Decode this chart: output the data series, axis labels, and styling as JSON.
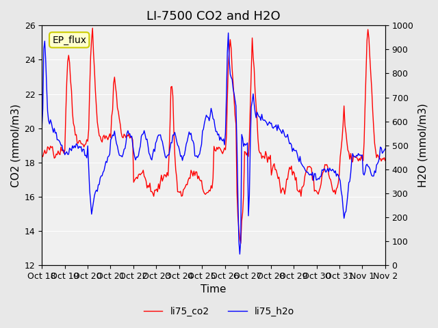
{
  "title": "LI-7500 CO2 and H2O",
  "xlabel": "Time",
  "ylabel_left": "CO2 (mmol/m3)",
  "ylabel_right": "H2O (mmol/m3)",
  "ylim_left": [
    12,
    26
  ],
  "ylim_right": [
    0,
    1000
  ],
  "yticks_left": [
    12,
    14,
    16,
    18,
    20,
    22,
    24,
    26
  ],
  "yticks_right": [
    0,
    100,
    200,
    300,
    400,
    500,
    600,
    700,
    800,
    900,
    1000
  ],
  "xtick_labels": [
    "Oct 18",
    "Oct 19",
    "Oct 20",
    "Oct 21",
    "Oct 22",
    "Oct 23",
    "Oct 24",
    "Oct 25",
    "Oct 26",
    "Oct 27",
    "Oct 28",
    "Oct 29",
    "Oct 30",
    "Oct 31",
    "Nov 1",
    "Nov 2"
  ],
  "co2_color": "#FF0000",
  "h2o_color": "#0000FF",
  "background_color": "#E8E8E8",
  "plot_bg_color": "#F0F0F0",
  "legend_label_co2": "li75_co2",
  "legend_label_h2o": "li75_h2o",
  "watermark_text": "EP_flux",
  "watermark_bg": "#FFFFCC",
  "watermark_border": "#CCCC00",
  "title_fontsize": 13,
  "axis_fontsize": 11,
  "tick_fontsize": 9,
  "legend_fontsize": 10,
  "line_width": 1.0
}
